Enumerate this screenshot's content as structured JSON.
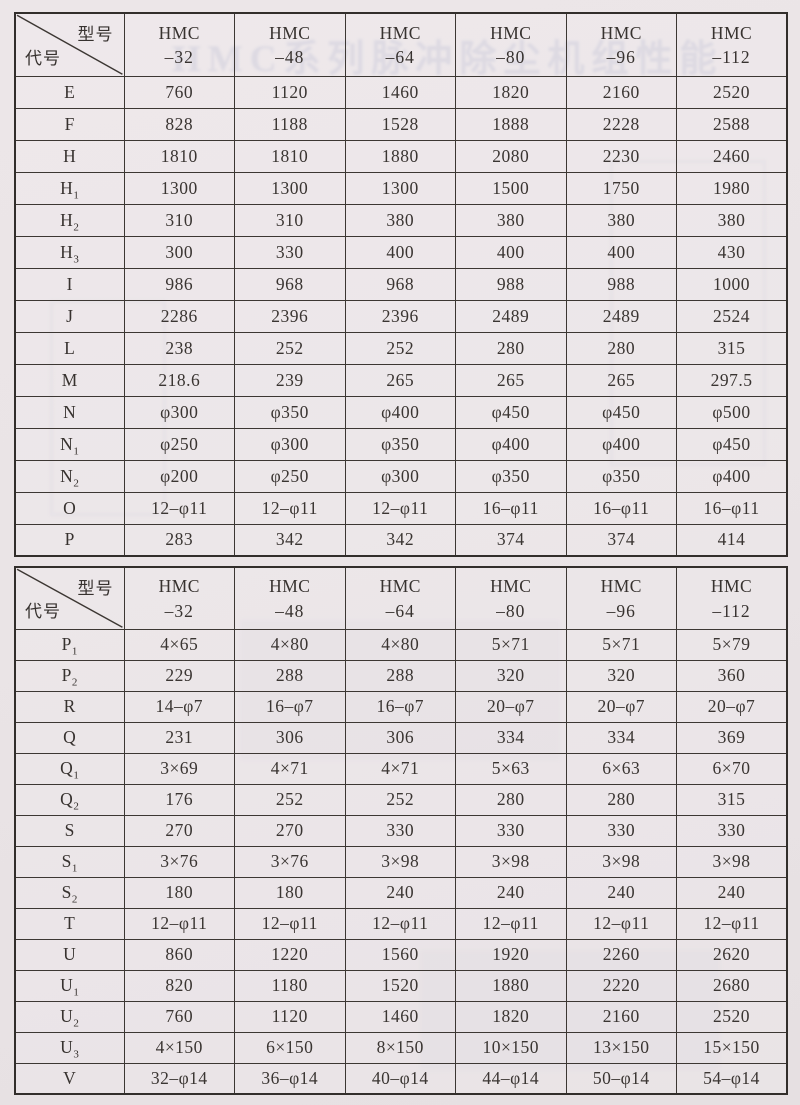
{
  "page": {
    "ghost_title": "HMC系列脉冲除尘机组性能"
  },
  "tables": [
    {
      "header": {
        "corner_top": "型号",
        "corner_bottom": "代号",
        "columns": [
          {
            "l1": "HMC",
            "l2": "–32"
          },
          {
            "l1": "HMC",
            "l2": "–48"
          },
          {
            "l1": "HMC",
            "l2": "–64"
          },
          {
            "l1": "HMC",
            "l2": "–80"
          },
          {
            "l1": "HMC",
            "l2": "–96"
          },
          {
            "l1": "HMC",
            "l2": "–112"
          }
        ]
      },
      "rows": [
        {
          "code": "E",
          "sub": "",
          "values": [
            "760",
            "1120",
            "1460",
            "1820",
            "2160",
            "2520"
          ]
        },
        {
          "code": "F",
          "sub": "",
          "values": [
            "828",
            "1188",
            "1528",
            "1888",
            "2228",
            "2588"
          ]
        },
        {
          "code": "H",
          "sub": "",
          "values": [
            "1810",
            "1810",
            "1880",
            "2080",
            "2230",
            "2460"
          ]
        },
        {
          "code": "H",
          "sub": "1",
          "values": [
            "1300",
            "1300",
            "1300",
            "1500",
            "1750",
            "1980"
          ]
        },
        {
          "code": "H",
          "sub": "2",
          "values": [
            "310",
            "310",
            "380",
            "380",
            "380",
            "380"
          ]
        },
        {
          "code": "H",
          "sub": "3",
          "values": [
            "300",
            "330",
            "400",
            "400",
            "400",
            "430"
          ]
        },
        {
          "code": "I",
          "sub": "",
          "values": [
            "986",
            "968",
            "968",
            "988",
            "988",
            "1000"
          ]
        },
        {
          "code": "J",
          "sub": "",
          "values": [
            "2286",
            "2396",
            "2396",
            "2489",
            "2489",
            "2524"
          ]
        },
        {
          "code": "L",
          "sub": "",
          "values": [
            "238",
            "252",
            "252",
            "280",
            "280",
            "315"
          ]
        },
        {
          "code": "M",
          "sub": "",
          "values": [
            "218.6",
            "239",
            "265",
            "265",
            "265",
            "297.5"
          ]
        },
        {
          "code": "N",
          "sub": "",
          "values": [
            "φ300",
            "φ350",
            "φ400",
            "φ450",
            "φ450",
            "φ500"
          ]
        },
        {
          "code": "N",
          "sub": "1",
          "values": [
            "φ250",
            "φ300",
            "φ350",
            "φ400",
            "φ400",
            "φ450"
          ]
        },
        {
          "code": "N",
          "sub": "2",
          "values": [
            "φ200",
            "φ250",
            "φ300",
            "φ350",
            "φ350",
            "φ400"
          ]
        },
        {
          "code": "O",
          "sub": "",
          "values": [
            "12–φ11",
            "12–φ11",
            "12–φ11",
            "16–φ11",
            "16–φ11",
            "16–φ11"
          ]
        },
        {
          "code": "P",
          "sub": "",
          "values": [
            "283",
            "342",
            "342",
            "374",
            "374",
            "414"
          ]
        }
      ]
    },
    {
      "header": {
        "corner_top": "型号",
        "corner_bottom": "代号",
        "columns": [
          {
            "l1": "HMC",
            "l2": "–32"
          },
          {
            "l1": "HMC",
            "l2": "–48"
          },
          {
            "l1": "HMC",
            "l2": "–64"
          },
          {
            "l1": "HMC",
            "l2": "–80"
          },
          {
            "l1": "HMC",
            "l2": "–96"
          },
          {
            "l1": "HMC",
            "l2": "–112"
          }
        ]
      },
      "rows": [
        {
          "code": "P",
          "sub": "1",
          "values": [
            "4×65",
            "4×80",
            "4×80",
            "5×71",
            "5×71",
            "5×79"
          ]
        },
        {
          "code": "P",
          "sub": "2",
          "values": [
            "229",
            "288",
            "288",
            "320",
            "320",
            "360"
          ]
        },
        {
          "code": "R",
          "sub": "",
          "values": [
            "14–φ7",
            "16–φ7",
            "16–φ7",
            "20–φ7",
            "20–φ7",
            "20–φ7"
          ]
        },
        {
          "code": "Q",
          "sub": "",
          "values": [
            "231",
            "306",
            "306",
            "334",
            "334",
            "369"
          ]
        },
        {
          "code": "Q",
          "sub": "1",
          "values": [
            "3×69",
            "4×71",
            "4×71",
            "5×63",
            "6×63",
            "6×70"
          ]
        },
        {
          "code": "Q",
          "sub": "2",
          "values": [
            "176",
            "252",
            "252",
            "280",
            "280",
            "315"
          ]
        },
        {
          "code": "S",
          "sub": "",
          "values": [
            "270",
            "270",
            "330",
            "330",
            "330",
            "330"
          ]
        },
        {
          "code": "S",
          "sub": "1",
          "values": [
            "3×76",
            "3×76",
            "3×98",
            "3×98",
            "3×98",
            "3×98"
          ]
        },
        {
          "code": "S",
          "sub": "2",
          "values": [
            "180",
            "180",
            "240",
            "240",
            "240",
            "240"
          ]
        },
        {
          "code": "T",
          "sub": "",
          "values": [
            "12–φ11",
            "12–φ11",
            "12–φ11",
            "12–φ11",
            "12–φ11",
            "12–φ11"
          ]
        },
        {
          "code": "U",
          "sub": "",
          "values": [
            "860",
            "1220",
            "1560",
            "1920",
            "2260",
            "2620"
          ]
        },
        {
          "code": "U",
          "sub": "1",
          "values": [
            "820",
            "1180",
            "1520",
            "1880",
            "2220",
            "2680"
          ]
        },
        {
          "code": "U",
          "sub": "2",
          "values": [
            "760",
            "1120",
            "1460",
            "1820",
            "2160",
            "2520"
          ]
        },
        {
          "code": "U",
          "sub": "3",
          "values": [
            "4×150",
            "6×150",
            "8×150",
            "10×150",
            "13×150",
            "15×150"
          ]
        },
        {
          "code": "V",
          "sub": "",
          "values": [
            "32–φ14",
            "36–φ14",
            "40–φ14",
            "44–φ14",
            "50–φ14",
            "54–φ14"
          ]
        }
      ]
    }
  ]
}
